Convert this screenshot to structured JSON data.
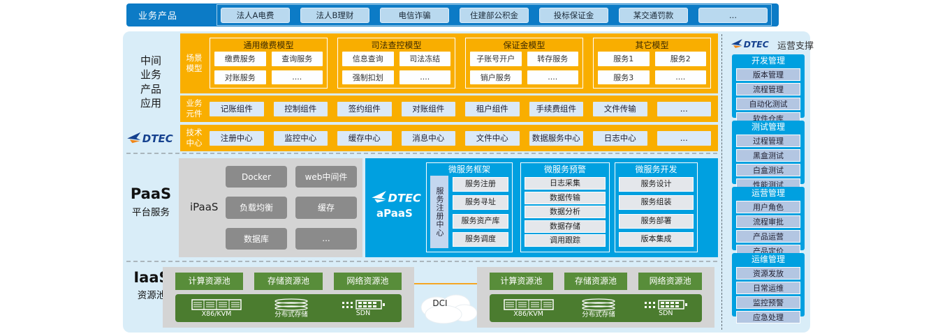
{
  "brand": {
    "logo_text": "DTEC"
  },
  "top_bar": {
    "label": "业务产品",
    "products": [
      "法人A电费",
      "法人B理财",
      "电信诈骗",
      "住建部公积金",
      "投标保证金",
      "某交通罚款",
      "..."
    ]
  },
  "middle": {
    "label": "中间\n业务\n产品\n应用",
    "scenario_row": {
      "label": "场景\n模型",
      "groups": [
        {
          "title": "通用缴费模型",
          "services": [
            "缴费服务",
            "查询服务",
            "对账服务",
            "...."
          ]
        },
        {
          "title": "司法查控模型",
          "services": [
            "信息查询",
            "司法冻结",
            "强制扣划",
            "...."
          ]
        },
        {
          "title": "保证金模型",
          "services": [
            "子账号开户",
            "转存服务",
            "销户服务",
            "...."
          ]
        },
        {
          "title": "其它模型",
          "services": [
            "服务1",
            "服务2",
            "服务3",
            "...."
          ]
        }
      ]
    },
    "component_row": {
      "label": "业务\n元件",
      "items": [
        "记账组件",
        "控制组件",
        "签约组件",
        "对账组件",
        "租户组件",
        "手续费组件",
        "文件传输",
        "..."
      ]
    },
    "tech_row": {
      "label": "技术\n中心",
      "items": [
        "注册中心",
        "监控中心",
        "缓存中心",
        "消息中心",
        "文件中心",
        "数据服务中心",
        "日志中心",
        "..."
      ]
    }
  },
  "paas": {
    "title": "PaaS",
    "subtitle": "平台服务",
    "ipaas": {
      "label": "iPaaS",
      "items": [
        "Docker",
        "web中间件",
        "负载均衡",
        "缓存",
        "数据库",
        "..."
      ]
    },
    "apaas": {
      "label": "aPaaS",
      "registry_tab": "服务注册中心",
      "groups": [
        {
          "title": "微服务框架",
          "items": [
            "服务注册",
            "服务寻址",
            "服务资产库",
            "服务调度"
          ]
        },
        {
          "title": "微服务预警",
          "items": [
            "日志采集",
            "数据传输",
            "数据分析",
            "数据存储",
            "调用跟踪"
          ]
        },
        {
          "title": "微服务开发",
          "items": [
            "服务设计",
            "服务组装",
            "服务部署",
            "版本集成"
          ]
        }
      ]
    }
  },
  "iaas": {
    "title": "IaaS",
    "subtitle": "资源池",
    "pool_buttons": [
      "计算资源池",
      "存储资源池",
      "网络资源池"
    ],
    "nodes": [
      {
        "icon": "server-rack-icon",
        "label": "X86/KVM"
      },
      {
        "icon": "disk-stack-icon",
        "label": "分布式存储"
      },
      {
        "icon": "network-switch-icon",
        "label": "SDN"
      }
    ],
    "dci_label": "DCI"
  },
  "sidebar": {
    "title": "运营支撑",
    "sections": [
      {
        "header": "开发管理",
        "items": [
          "版本管理",
          "流程管理",
          "自动化测试",
          "软件仓库"
        ]
      },
      {
        "header": "测试管理",
        "items": [
          "过程管理",
          "黑盒测试",
          "白盒测试",
          "性能测试"
        ]
      },
      {
        "header": "运营管理",
        "items": [
          "用户角色",
          "流程审批",
          "产品运营",
          "产品定价"
        ]
      },
      {
        "header": "运维管理",
        "items": [
          "资源发放",
          "日常运维",
          "监控预警",
          "应急处理"
        ]
      }
    ]
  },
  "colors": {
    "topbar_blue": "#0c7bc6",
    "orange": "#f9ae00",
    "cyan_blue": "#00a0e0",
    "panel_blue": "#d9edf8",
    "green": "#588d3a",
    "logo_blue": "#15418f",
    "logo_orange": "#f08619"
  }
}
